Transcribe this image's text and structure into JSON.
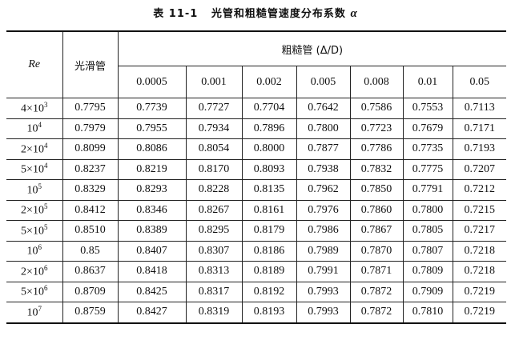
{
  "title": {
    "label": "表 11-1",
    "text": "光管和粗糙管速度分布系数",
    "symbol": "α"
  },
  "table": {
    "re_header": "Re",
    "smooth_header": "光滑管",
    "rough_header": "粗糙管 (Δ/D)",
    "roughness_values": [
      "0.0005",
      "0.001",
      "0.002",
      "0.005",
      "0.008",
      "0.01",
      "0.05"
    ],
    "rows": [
      {
        "re_base": "4×10",
        "re_exp": "3",
        "values": [
          "0.7795",
          "0.7739",
          "0.7727",
          "0.7704",
          "0.7642",
          "0.7586",
          "0.7553",
          "0.7113"
        ]
      },
      {
        "re_base": "10",
        "re_exp": "4",
        "values": [
          "0.7979",
          "0.7955",
          "0.7934",
          "0.7896",
          "0.7800",
          "0.7723",
          "0.7679",
          "0.7171"
        ]
      },
      {
        "re_base": "2×10",
        "re_exp": "4",
        "values": [
          "0.8099",
          "0.8086",
          "0.8054",
          "0.8000",
          "0.7877",
          "0.7786",
          "0.7735",
          "0.7193"
        ]
      },
      {
        "re_base": "5×10",
        "re_exp": "4",
        "values": [
          "0.8237",
          "0.8219",
          "0.8170",
          "0.8093",
          "0.7938",
          "0.7832",
          "0.7775",
          "0.7207"
        ]
      },
      {
        "re_base": "10",
        "re_exp": "5",
        "values": [
          "0.8329",
          "0.8293",
          "0.8228",
          "0.8135",
          "0.7962",
          "0.7850",
          "0.7791",
          "0.7212"
        ]
      },
      {
        "re_base": "2×10",
        "re_exp": "5",
        "values": [
          "0.8412",
          "0.8346",
          "0.8267",
          "0.8161",
          "0.7976",
          "0.7860",
          "0.7800",
          "0.7215"
        ]
      },
      {
        "re_base": "5×10",
        "re_exp": "5",
        "values": [
          "0.8510",
          "0.8389",
          "0.8295",
          "0.8179",
          "0.7986",
          "0.7867",
          "0.7805",
          "0.7217"
        ]
      },
      {
        "re_base": "10",
        "re_exp": "6",
        "values": [
          "0.85",
          "0.8407",
          "0.8307",
          "0.8186",
          "0.7989",
          "0.7870",
          "0.7807",
          "0.7218"
        ]
      },
      {
        "re_base": "2×10",
        "re_exp": "6",
        "values": [
          "0.8637",
          "0.8418",
          "0.8313",
          "0.8189",
          "0.7991",
          "0.7871",
          "0.7809",
          "0.7218"
        ]
      },
      {
        "re_base": "5×10",
        "re_exp": "6",
        "values": [
          "0.8709",
          "0.8425",
          "0.8317",
          "0.8192",
          "0.7993",
          "0.7872",
          "0.7909",
          "0.7219"
        ]
      },
      {
        "re_base": "10",
        "re_exp": "7",
        "values": [
          "0.8759",
          "0.8427",
          "0.8319",
          "0.8193",
          "0.7993",
          "0.7872",
          "0.7810",
          "0.7219"
        ]
      }
    ]
  }
}
